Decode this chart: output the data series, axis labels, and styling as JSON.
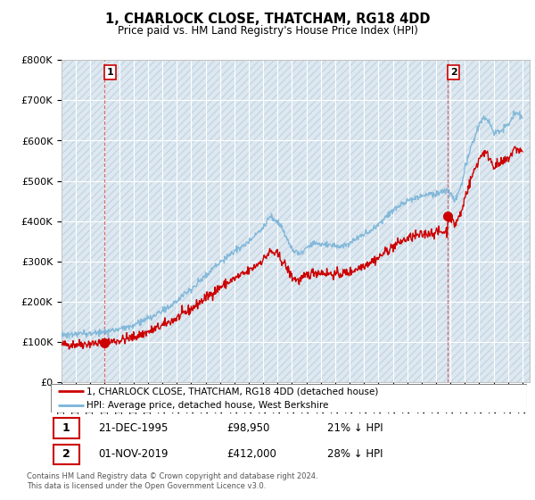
{
  "title": "1, CHARLOCK CLOSE, THATCHAM, RG18 4DD",
  "subtitle": "Price paid vs. HM Land Registry's House Price Index (HPI)",
  "legend_line1": "1, CHARLOCK CLOSE, THATCHAM, RG18 4DD (detached house)",
  "legend_line2": "HPI: Average price, detached house, West Berkshire",
  "annotation1_date": "21-DEC-1995",
  "annotation1_price": "£98,950",
  "annotation1_hpi": "21% ↓ HPI",
  "annotation2_date": "01-NOV-2019",
  "annotation2_price": "£412,000",
  "annotation2_hpi": "28% ↓ HPI",
  "footer": "Contains HM Land Registry data © Crown copyright and database right 2024.\nThis data is licensed under the Open Government Licence v3.0.",
  "hpi_color": "#7ab4d8",
  "price_color": "#cc0000",
  "marker_color": "#cc0000",
  "annotation_box_color": "#cc0000",
  "ylim": [
    0,
    800000
  ],
  "yticks": [
    0,
    100000,
    200000,
    300000,
    400000,
    500000,
    600000,
    700000,
    800000
  ],
  "xlim_left": 1993.0,
  "xlim_right": 2025.5,
  "sale1_x": 1995.97,
  "sale1_y": 98950,
  "sale2_x": 2019.83,
  "sale2_y": 412000,
  "bg_color": "#dde8f0"
}
